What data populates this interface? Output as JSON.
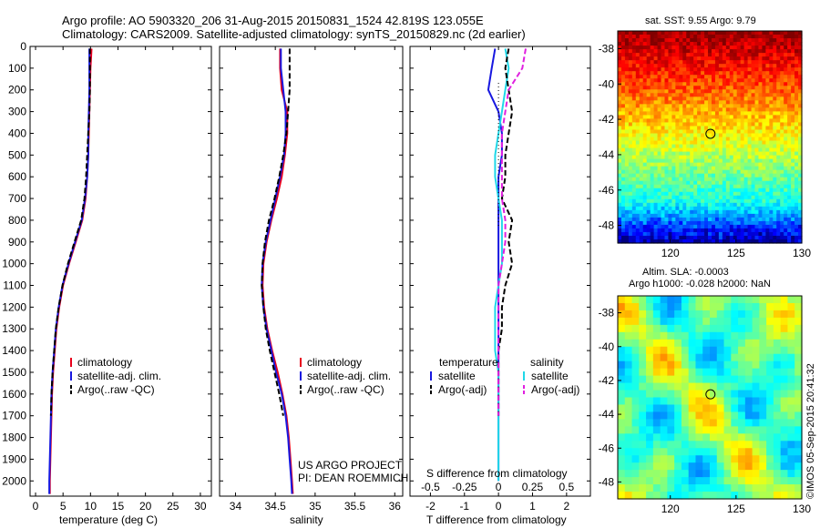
{
  "header": {
    "line1": "Argo profile: AO 5903320_206 31-Aug-2015 20150831_1524 42.819S 123.055E",
    "line2": "Climatology: CARS2009. Satellite-adjusted climatology: synTS_20150829.nc (2d earlier)"
  },
  "watermark": "©IMOS 05-Sep-2015 20:41:32",
  "credit": {
    "line1": "US ARGO PROJECT",
    "line2": "PI: DEAN ROEMMICH"
  },
  "colors": {
    "clim": "#e8001c",
    "sat": "#1818e0",
    "argo": "#000000",
    "sal_sat": "#20d8e8",
    "sal_argo": "#e020e0"
  },
  "chart_data": [
    {
      "type": "line",
      "xlabel": "temperature (deg C)",
      "xlim": [
        -1,
        32
      ],
      "ylim": [
        2070,
        0
      ],
      "xticks": [
        0,
        5,
        10,
        15,
        20,
        25,
        30
      ],
      "yticks": [
        0,
        100,
        200,
        300,
        400,
        500,
        600,
        700,
        800,
        900,
        1000,
        1100,
        1200,
        1300,
        1400,
        1500,
        1600,
        1700,
        1800,
        1900,
        2000
      ],
      "legend": [
        "climatology",
        "satellite-adj. clim.",
        "Argo(..raw -QC)"
      ],
      "series": [
        {
          "name": "climatology",
          "color": "#e8001c",
          "x": [
            10.2,
            10.0,
            9.9,
            9.8,
            9.7,
            9.6,
            9.4,
            9.1,
            8.5,
            7.3,
            6.1,
            5.0,
            4.3,
            3.8,
            3.5,
            3.2,
            3.0,
            2.9,
            2.8,
            2.7,
            2.6,
            2.6
          ],
          "y": [
            10,
            100,
            200,
            300,
            400,
            500,
            600,
            700,
            800,
            900,
            1000,
            1100,
            1200,
            1300,
            1400,
            1500,
            1600,
            1700,
            1800,
            1900,
            2000,
            2060
          ]
        },
        {
          "name": "satellite-adj. clim.",
          "color": "#1818e0",
          "x": [
            9.8,
            9.8,
            9.8,
            9.7,
            9.6,
            9.6,
            9.4,
            9.0,
            8.4,
            7.2,
            6.0,
            4.9,
            4.2,
            3.7,
            3.4,
            3.1,
            2.9,
            2.8,
            2.7,
            2.6,
            2.5,
            2.5
          ],
          "y": [
            10,
            100,
            200,
            300,
            400,
            500,
            600,
            700,
            800,
            900,
            1000,
            1100,
            1200,
            1300,
            1400,
            1500,
            1600,
            1700,
            1800,
            1900,
            2000,
            2060
          ]
        },
        {
          "name": "Argo(..raw -QC)",
          "color": "#000000",
          "x": [
            9.9,
            9.9,
            9.9,
            9.8,
            9.6,
            9.4,
            9.2,
            8.9,
            8.3,
            7.1,
            5.9,
            4.9,
            4.2,
            3.7,
            3.4,
            3.1,
            2.9,
            2.8
          ],
          "y": [
            10,
            100,
            200,
            300,
            400,
            500,
            600,
            700,
            800,
            900,
            1000,
            1100,
            1200,
            1300,
            1400,
            1500,
            1600,
            1700
          ]
        }
      ]
    },
    {
      "type": "line",
      "xlabel": "salinity",
      "xlim": [
        33.8,
        36.1
      ],
      "ylim": [
        2070,
        0
      ],
      "xticks": [
        34,
        34.5,
        35,
        35.5,
        36
      ],
      "legend": [
        "climatology",
        "satellite-adj. clim.",
        "Argo(..raw -QC)"
      ],
      "series": [
        {
          "name": "climatology",
          "color": "#e8001c",
          "x": [
            34.56,
            34.56,
            34.58,
            34.65,
            34.65,
            34.62,
            34.58,
            34.52,
            34.45,
            34.39,
            34.35,
            34.34,
            34.36,
            34.4,
            34.46,
            34.53,
            34.59,
            34.64,
            34.67,
            34.69,
            34.71,
            34.72
          ],
          "y": [
            10,
            100,
            200,
            300,
            400,
            500,
            600,
            700,
            800,
            900,
            1000,
            1100,
            1200,
            1300,
            1400,
            1500,
            1600,
            1700,
            1800,
            1900,
            2000,
            2060
          ]
        },
        {
          "name": "satellite-adj. clim.",
          "color": "#1818e0",
          "x": [
            34.57,
            34.57,
            34.6,
            34.63,
            34.63,
            34.61,
            34.56,
            34.5,
            34.44,
            34.38,
            34.34,
            34.33,
            34.35,
            34.39,
            34.45,
            34.51,
            34.58,
            34.63,
            34.66,
            34.68,
            34.7,
            34.71
          ],
          "y": [
            10,
            100,
            200,
            300,
            400,
            500,
            600,
            700,
            800,
            900,
            1000,
            1100,
            1200,
            1300,
            1400,
            1500,
            1600,
            1700,
            1800,
            1900,
            2000,
            2060
          ]
        },
        {
          "name": "Argo(..raw -QC)",
          "color": "#000000",
          "x": [
            34.68,
            34.68,
            34.68,
            34.66,
            34.64,
            34.6,
            34.55,
            34.49,
            34.42,
            34.37,
            34.34,
            34.33,
            34.35,
            34.38,
            34.43,
            34.49,
            34.55,
            34.6
          ],
          "y": [
            10,
            100,
            200,
            300,
            400,
            500,
            600,
            700,
            800,
            900,
            1000,
            1100,
            1200,
            1300,
            1400,
            1500,
            1600,
            1700
          ]
        }
      ]
    },
    {
      "type": "line",
      "xlabel": "T difference from climatology",
      "xlabel_top": "S difference from climatology",
      "xlim": [
        -2.6,
        2.7
      ],
      "ylim": [
        2070,
        0
      ],
      "xticks": [
        -2,
        -1,
        0,
        1,
        2
      ],
      "xticks_top": [
        "-0.5",
        "-0.25",
        "0",
        "0.25",
        "0.5"
      ],
      "legend_groups": [
        "temperature",
        "salinity"
      ],
      "legend": [
        "satellite",
        "Argo(-adj)",
        "satellite",
        "Argo(-adj)"
      ],
      "series": [
        {
          "name": "satellite",
          "color": "#1818e0",
          "x": [
            -0.1,
            -0.2,
            -0.3,
            0.0,
            0.1,
            0.1,
            0.0,
            0.0,
            0.0,
            0.0,
            0.0,
            0.0,
            0.0,
            0.0,
            0.0,
            0.0,
            0.0,
            0.0,
            0.0,
            0.0,
            0.0
          ],
          "y": [
            10,
            100,
            200,
            300,
            400,
            500,
            600,
            700,
            800,
            900,
            1000,
            1100,
            1200,
            1300,
            1400,
            1500,
            1600,
            1700,
            1800,
            1900,
            2000
          ]
        },
        {
          "name": "satellite",
          "color": "#20d8e8",
          "x": [
            0.2,
            0.3,
            0.2,
            0.1,
            0.0,
            -0.1,
            -0.1,
            0.0,
            0.1,
            0.1,
            0.1,
            0.0,
            -0.1,
            -0.1,
            -0.1,
            0.0,
            0.0,
            0.0,
            0.0,
            0.0,
            0.0
          ],
          "y": [
            10,
            100,
            200,
            300,
            400,
            500,
            600,
            700,
            800,
            900,
            1000,
            1100,
            1200,
            1300,
            1400,
            1500,
            1600,
            1700,
            1800,
            1900,
            2000
          ]
        },
        {
          "name": "Argo(-adj)",
          "color": "#000000",
          "x": [
            0.3,
            0.2,
            0.3,
            0.4,
            0.3,
            0.2,
            0.2,
            0.1,
            0.4,
            0.3,
            0.4,
            0.2,
            0.1,
            0.1,
            0.0,
            0.0,
            0.0,
            0.0
          ],
          "y": [
            10,
            100,
            200,
            300,
            400,
            500,
            600,
            700,
            800,
            900,
            1000,
            1100,
            1200,
            1300,
            1400,
            1500,
            1600,
            1700
          ]
        },
        {
          "name": "Argo(-adj)",
          "color": "#e020e0",
          "x": [
            0.8,
            0.7,
            0.3,
            0.2,
            0.1,
            0.1,
            0.1,
            0.1,
            0.2,
            0.2,
            0.1,
            0.0,
            0.0,
            0.0,
            0.0,
            0.0,
            0.0,
            0.0
          ],
          "y": [
            10,
            100,
            200,
            300,
            400,
            500,
            600,
            700,
            800,
            900,
            1000,
            1100,
            1200,
            1300,
            1400,
            1500,
            1600,
            1700
          ]
        }
      ]
    },
    {
      "type": "heatmap",
      "title": "sat. SST: 9.55 Argo: 9.79",
      "xlim": [
        116,
        130
      ],
      "ylim": [
        -49,
        -37
      ],
      "xticks": [
        120,
        125,
        130
      ],
      "yticks": [
        -38,
        -40,
        -42,
        -44,
        -46,
        -48
      ],
      "marker": {
        "x": 123.055,
        "y": -42.819
      }
    },
    {
      "type": "heatmap",
      "title_line1": "Altim. SLA: -0.0003",
      "title_line2": "Argo h1000: -0.028 h2000: NaN",
      "xlim": [
        116,
        130
      ],
      "ylim": [
        -49,
        -37
      ],
      "xticks": [
        120,
        125,
        130
      ],
      "yticks": [
        -38,
        -40,
        -42,
        -44,
        -46,
        -48
      ],
      "marker": {
        "x": 123.055,
        "y": -42.819
      }
    }
  ]
}
